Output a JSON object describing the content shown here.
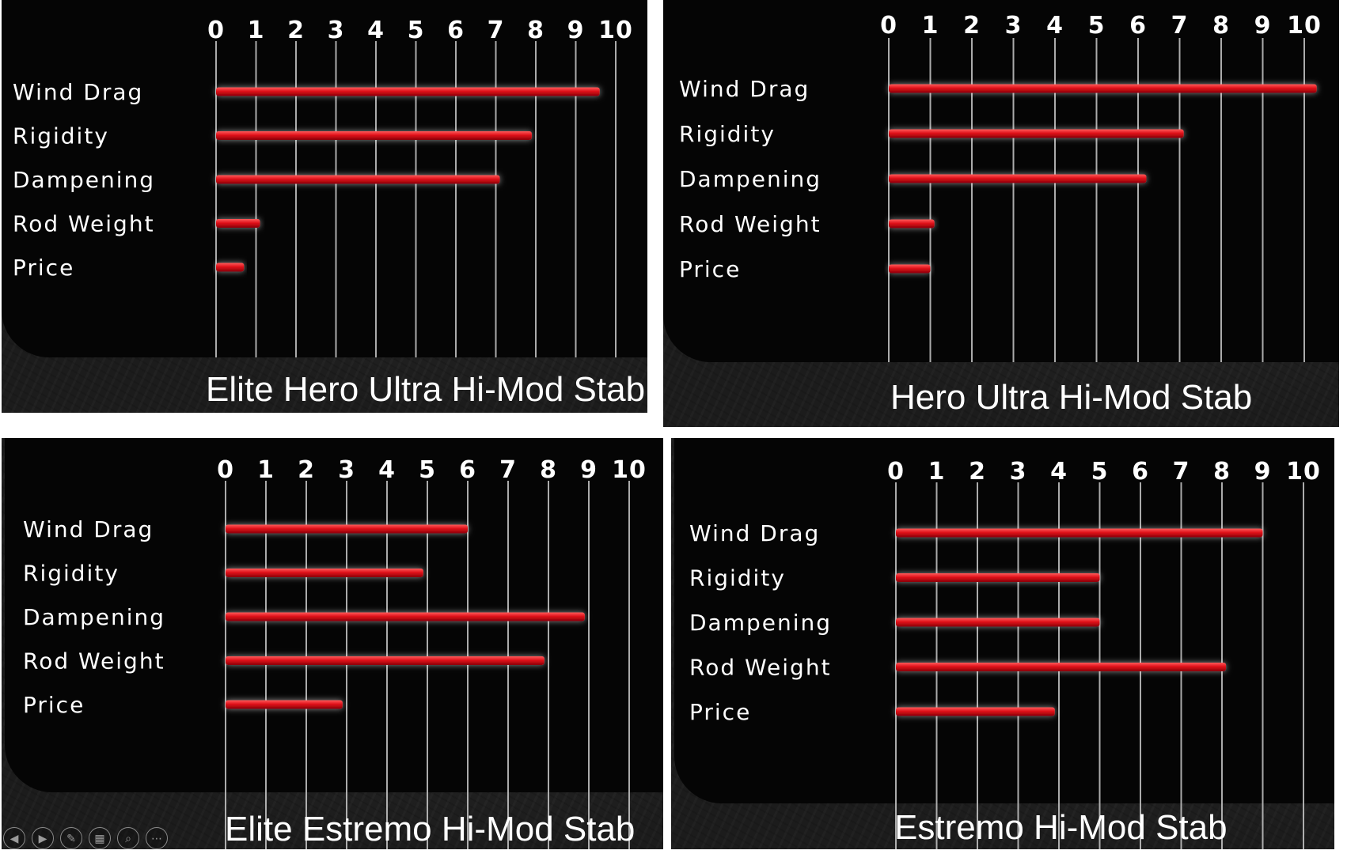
{
  "colors": {
    "bar": "#e0101a",
    "bar_glow": "#ffffff",
    "text": "#ffffff",
    "panel_bg": "#1f1f1f",
    "card_bg": "#050505"
  },
  "chart_data": [
    {
      "type": "bar",
      "orientation": "horizontal",
      "title": "Elite Hero Ultra Hi-Mod Stab",
      "categories": [
        "Wind Drag",
        "Rigidity",
        "Dampening",
        "Rod Weight",
        "Price"
      ],
      "values": [
        9.6,
        7.9,
        7.1,
        1.1,
        0.7
      ],
      "ticks": [
        "0",
        "1",
        "2",
        "3",
        "4",
        "5",
        "6",
        "7",
        "8",
        "9",
        "10"
      ],
      "xlim": [
        0,
        10
      ],
      "grid": true,
      "legend": "none"
    },
    {
      "type": "bar",
      "orientation": "horizontal",
      "title": "Hero Ultra Hi-Mod Stab",
      "categories": [
        "Wind Drag",
        "Rigidity",
        "Dampening",
        "Rod Weight",
        "Price"
      ],
      "values": [
        10.3,
        7.1,
        6.2,
        1.1,
        1.0
      ],
      "ticks": [
        "0",
        "1",
        "2",
        "3",
        "4",
        "5",
        "6",
        "7",
        "8",
        "9",
        "10"
      ],
      "xlim": [
        0,
        10
      ],
      "grid": true,
      "legend": "none"
    },
    {
      "type": "bar",
      "orientation": "horizontal",
      "title": "Elite Estremo Hi-Mod Stab",
      "categories": [
        "Wind Drag",
        "Rigidity",
        "Dampening",
        "Rod Weight",
        "Price"
      ],
      "values": [
        6.0,
        4.9,
        8.9,
        7.9,
        2.9
      ],
      "ticks": [
        "0",
        "1",
        "2",
        "3",
        "4",
        "5",
        "6",
        "7",
        "8",
        "9",
        "10"
      ],
      "xlim": [
        0,
        10
      ],
      "grid": true,
      "legend": "none"
    },
    {
      "type": "bar",
      "orientation": "horizontal",
      "title": "Estremo Hi-Mod Stab",
      "categories": [
        "Wind Drag",
        "Rigidity",
        "Dampening",
        "Rod Weight",
        "Price"
      ],
      "values": [
        9.0,
        5.0,
        5.0,
        8.1,
        3.9
      ],
      "ticks": [
        "0",
        "1",
        "2",
        "3",
        "4",
        "5",
        "6",
        "7",
        "8",
        "9",
        "10"
      ],
      "xlim": [
        0,
        10
      ],
      "grid": true,
      "legend": "none"
    }
  ],
  "controls": [
    {
      "icon": "previous-icon",
      "glyph": "◀"
    },
    {
      "icon": "next-icon",
      "glyph": "▶"
    },
    {
      "icon": "pen-icon",
      "glyph": "✎"
    },
    {
      "icon": "slides-icon",
      "glyph": "▦"
    },
    {
      "icon": "zoom-icon",
      "glyph": "⌕"
    },
    {
      "icon": "more-icon",
      "glyph": "⋯"
    }
  ]
}
